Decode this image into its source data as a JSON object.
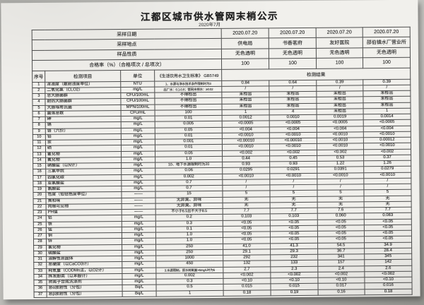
{
  "title": "江都区城市供水管网末梢公示",
  "subtitle": "2020年7月",
  "sample_info": [
    {
      "label": "采样日期",
      "values": [
        "2020.07.20",
        "2020.07.20",
        "2020.07.20",
        "2020.07.20"
      ]
    },
    {
      "label": "采样地点",
      "values": [
        "供电局",
        "书香茗府",
        "友好医院",
        "邵伯镇水厂营业所"
      ]
    },
    {
      "label": "样品性质",
      "values": [
        "无色透明",
        "无色透明",
        "无色透明",
        "无色透明"
      ]
    },
    {
      "label": "合格率（%）（合格项次 / 总项次）",
      "values": [
        "100",
        "100",
        "100",
        "100"
      ]
    }
  ],
  "table": {
    "columns": {
      "no": "序号",
      "item": "检测项目",
      "unit": "单位",
      "standard": "《生活饮用水卫生标准》 GB5749",
      "results": "检测结果"
    },
    "rows": [
      [
        "1",
        "浑浊度（散射浊度单位）",
        "NTU",
        "1、水源与净水技术条件限制时为3",
        "0.84",
        "0.64",
        "0.39",
        "0.39"
      ],
      [
        "2",
        "二氧化氯（CLO2）",
        "mg/L",
        "出厂水：0.1-0.8；管网末梢水：≥0.02",
        "/",
        "/",
        "/",
        "/"
      ],
      [
        "3",
        "总大肠菌群",
        "CFU/100mL",
        "不得检出",
        "未检出",
        "未检出",
        "未检出",
        "未检出"
      ],
      [
        "4",
        "耐热大肠菌群",
        "CFU/100mL",
        "不得检出",
        "未检出",
        "未检出",
        "未检出",
        "未检出"
      ],
      [
        "5",
        "大肠埃希氏菌",
        "MPN/100mL",
        "不得检出",
        "未检出",
        "未检出",
        "未检出",
        "未检出"
      ],
      [
        "6",
        "菌落总数",
        "CFU/mL",
        "100",
        "1",
        "4",
        "未检出",
        "1"
      ],
      [
        "7",
        "砷",
        "mg/L",
        "0.01",
        "0.0012",
        "0.0010",
        "0.0019",
        "0.0014"
      ],
      [
        "8",
        "镉",
        "mg/L",
        "0.005",
        "<0.0005",
        "<0.0005",
        "<0.0005",
        "<0.0005"
      ],
      [
        "9",
        "铬（六价）",
        "mg/L",
        "0.05",
        "<0.004",
        "<0.004",
        "<0.004",
        "<0.004"
      ],
      [
        "10",
        "铅",
        "mg/L",
        "0.01",
        "<0.0010",
        "<0.0010",
        "<0.0010",
        "<0.0010"
      ],
      [
        "11",
        "汞",
        "mg/L",
        "0.001",
        "<0.00010",
        "<0.00010",
        "<0.0010",
        "0.00012"
      ],
      [
        "12",
        "硒",
        "mg/L",
        "0.01",
        "<0.0010",
        "<0.0010",
        "<0.0010",
        "<0.0010"
      ],
      [
        "13",
        "氰化物",
        "mg/L",
        "0.05",
        "<0.002",
        "<0.002",
        "<0.002",
        "<0.002"
      ],
      [
        "14",
        "氟化物",
        "mg/L",
        "1.0",
        "0.44",
        "0.45",
        "0.53",
        "0.37"
      ],
      [
        "15",
        "硝酸盐（以N计）",
        "mg/L",
        "10、地下水源限制时为20",
        "0.93",
        "0.93",
        "1.22",
        "1.26"
      ],
      [
        "16",
        "三氯甲烷",
        "mg/L",
        "0.06",
        "0.0295",
        "0.0291",
        "0.0391",
        "0.0279"
      ],
      [
        "17",
        "四氯化碳",
        "mg/L",
        "0.002",
        "<0.0010",
        "<0.0010",
        "<0.0010",
        "<0.0010"
      ],
      [
        "18",
        "亚氯酸盐",
        "mg/L",
        "0.7",
        "/",
        "/",
        "/",
        "/"
      ],
      [
        "19",
        "氯酸盐",
        "mg/L",
        "0.7",
        "/",
        "/",
        "/",
        "/"
      ],
      [
        "20",
        "色度（铂钴色度单位）",
        "——",
        "15",
        "5",
        "5",
        "5",
        "5"
      ],
      [
        "21",
        "臭和味",
        "——",
        "无异臭、异味",
        "无",
        "无",
        "无",
        "无"
      ],
      [
        "22",
        "肉眼可见物",
        "——",
        "无异臭、异味",
        "无",
        "无",
        "无",
        "无"
      ],
      [
        "23",
        "PH值",
        "——",
        "不小于6.5且不大于8.5",
        "7.7",
        "7.7",
        "7.6",
        "7.7"
      ],
      [
        "24",
        "铝",
        "mg/L",
        "0.2",
        "0.103",
        "0.103",
        "0.060",
        "0.083"
      ],
      [
        "25",
        "铁",
        "mg/L",
        "0.3",
        "<0.05",
        "<0.05",
        "<0.05",
        "<0.05"
      ],
      [
        "26",
        "锰",
        "mg/L",
        "0.1",
        "<0.05",
        "<0.05",
        "<0.05",
        "<0.05"
      ],
      [
        "27",
        "铜",
        "mg/L",
        "1.0",
        "<0.05",
        "<0.05",
        "<0.05",
        "<0.05"
      ],
      [
        "28",
        "锌",
        "mg/L",
        "1.0",
        "<0.05",
        "<0.05",
        "<0.05",
        "<0.05"
      ],
      [
        "29",
        "氯化物",
        "mg/L",
        "250",
        "41.0",
        "41.3",
        "54.5",
        "34.9"
      ],
      [
        "30",
        "硫酸盐",
        "mg/L",
        "250",
        "29.1",
        "29.3",
        "36.7",
        "28.4"
      ],
      [
        "31",
        "溶解性总固体",
        "mg/L",
        "1000",
        "292",
        "232",
        "341",
        "345"
      ],
      [
        "32",
        "总硬度（以CaCO3计）",
        "mg/L",
        "450",
        "132",
        "133",
        "157",
        "142"
      ],
      [
        "33",
        "耗氧量（CODMn法，以O2计）",
        "mg/L",
        "3.水源限制，原水耗氧量>6mg/L时为5",
        "2.7",
        "2.3",
        "2.4",
        "2.6"
      ],
      [
        "34",
        "挥发酚类（以苯酚计）",
        "mg/L",
        "0.002",
        "<0.002",
        "<0.002",
        "<0.002",
        "<0.002"
      ],
      [
        "35",
        "阴离子合成洗涤剂",
        "mg/L",
        "0.3",
        "<0.10",
        "<0.10",
        "<0.10",
        "<0.10"
      ],
      [
        "36",
        "总α放射性（分包）",
        "Bq/L",
        "0.5",
        "0.015",
        "0.015",
        "0.017",
        "0.016"
      ],
      [
        "37",
        "总β放射性（分包）",
        "Bq/L",
        "1",
        "0.18",
        "0.19",
        "0.16",
        "0.18"
      ]
    ]
  }
}
